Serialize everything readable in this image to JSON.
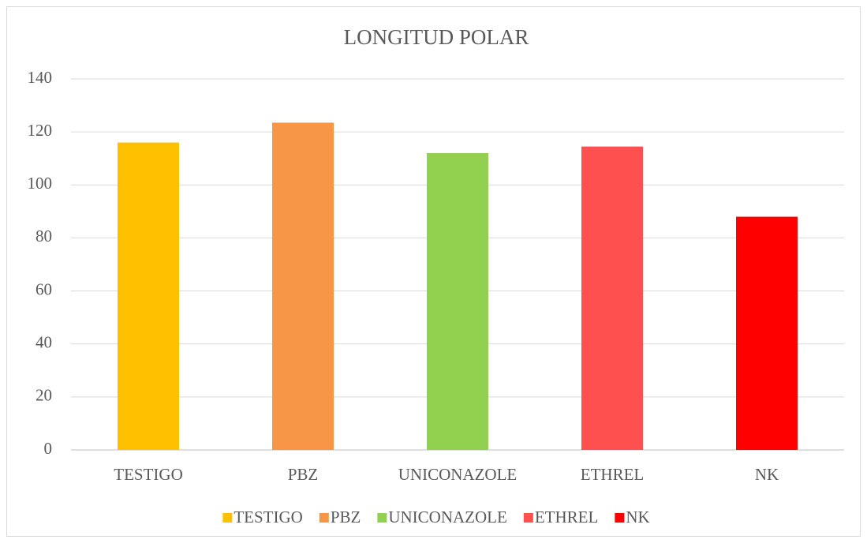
{
  "chart_data": {
    "type": "bar",
    "title": "LONGITUD POLAR",
    "categories": [
      "TESTIGO",
      "PBZ",
      "UNICONAZOLE",
      "ETHREL",
      "NK"
    ],
    "values": [
      116,
      123.5,
      112,
      114.5,
      88
    ],
    "colors": [
      "#ffc000",
      "#f79646",
      "#92d050",
      "#ff5050",
      "#ff0000"
    ],
    "ylim": [
      0,
      140
    ],
    "yticks": [
      0,
      20,
      40,
      60,
      80,
      100,
      120,
      140
    ],
    "grid": true,
    "legend": "bottom"
  }
}
